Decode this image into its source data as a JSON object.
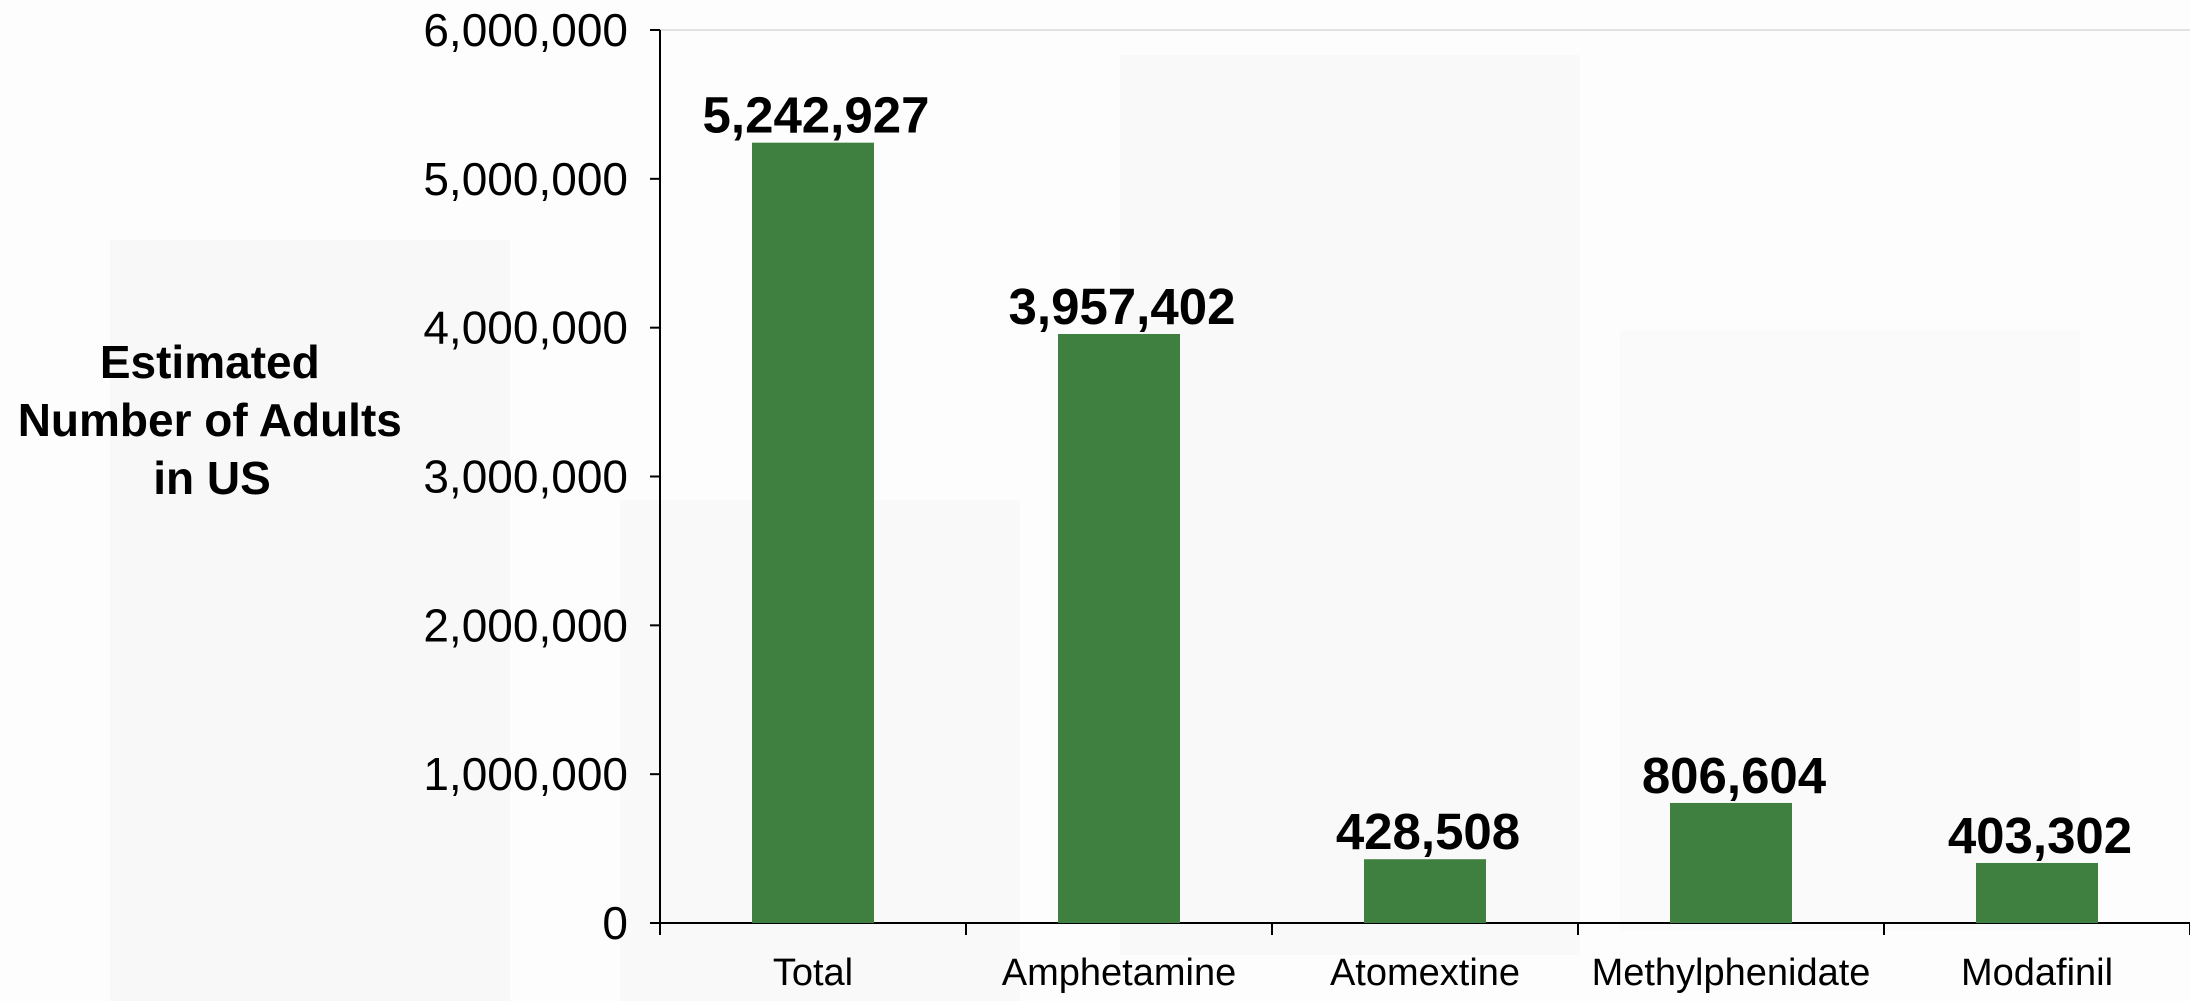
{
  "chart_data": {
    "type": "bar",
    "title": "",
    "xlabel": "",
    "ylabel_lines": [
      "Estimated",
      "Number of Adults",
      "in US"
    ],
    "categories": [
      "Total",
      "Amphetamine",
      "Atomextine",
      "Methylphenidate",
      "Modafinil"
    ],
    "values": [
      5242927,
      3957402,
      428508,
      806604,
      403302
    ],
    "value_labels": [
      "5,242,927",
      "3,957,402",
      "428,508",
      "806,604",
      "403,302"
    ],
    "ylim": [
      0,
      6000000
    ],
    "yticks": [
      0,
      1000000,
      2000000,
      3000000,
      4000000,
      5000000,
      6000000
    ],
    "ytick_labels": [
      "0",
      "1,000,000",
      "2,000,000",
      "3,000,000",
      "4,000,000",
      "5,000,000",
      "6,000,000"
    ],
    "grid": false,
    "legend": "none",
    "bar_color": "#3f7f3f",
    "axis_color": "#000000"
  }
}
